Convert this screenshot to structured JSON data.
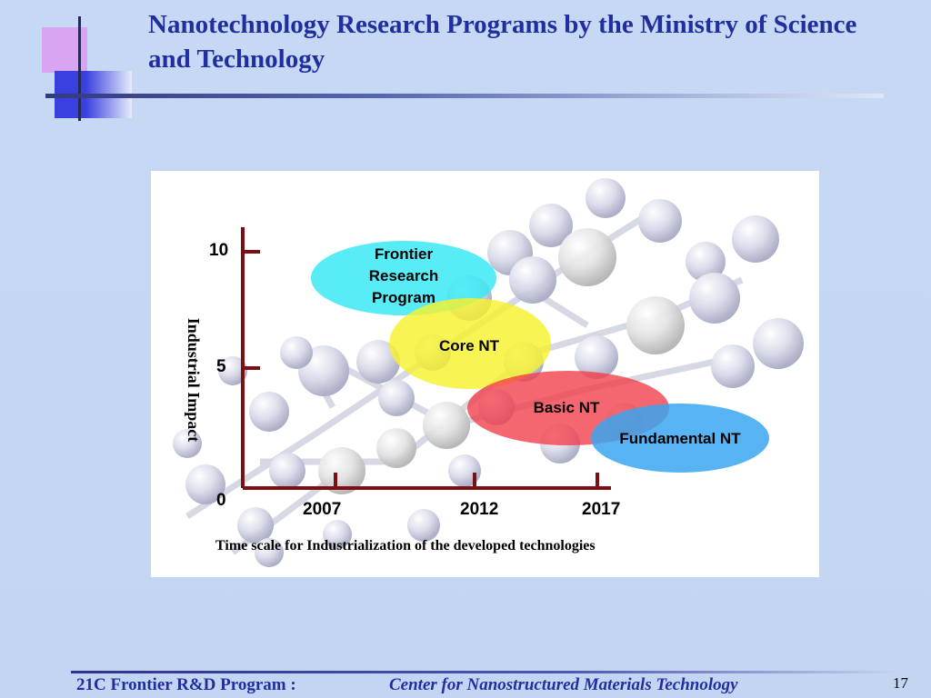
{
  "slide": {
    "title": "Nanotechnology Research Programs by the Ministry of Science and Technology",
    "page_number": "17"
  },
  "footer": {
    "program": "21C Frontier R&D Program :",
    "center": "Center for Nanostructured Materials Technology"
  },
  "diagram": {
    "y_axis_label": "Industrial Impact",
    "y_ticks": [
      "10",
      "5",
      "0"
    ],
    "x_ticks": [
      "2007",
      "2012",
      "2017"
    ],
    "caption": "Time scale for Industrialization of the developed technologies",
    "programs": [
      {
        "label": "Frontier Research Program",
        "line1": "Frontier",
        "line2": "Research",
        "line3": "Program",
        "color": "#33e8f4"
      },
      {
        "label": "Core NT",
        "color": "#f7f22e"
      },
      {
        "label": "Basic NT",
        "color": "#f23c48"
      },
      {
        "label": "Fundamental NT",
        "color": "#3aa6f0"
      }
    ],
    "axis_color": "#7a0f14"
  }
}
